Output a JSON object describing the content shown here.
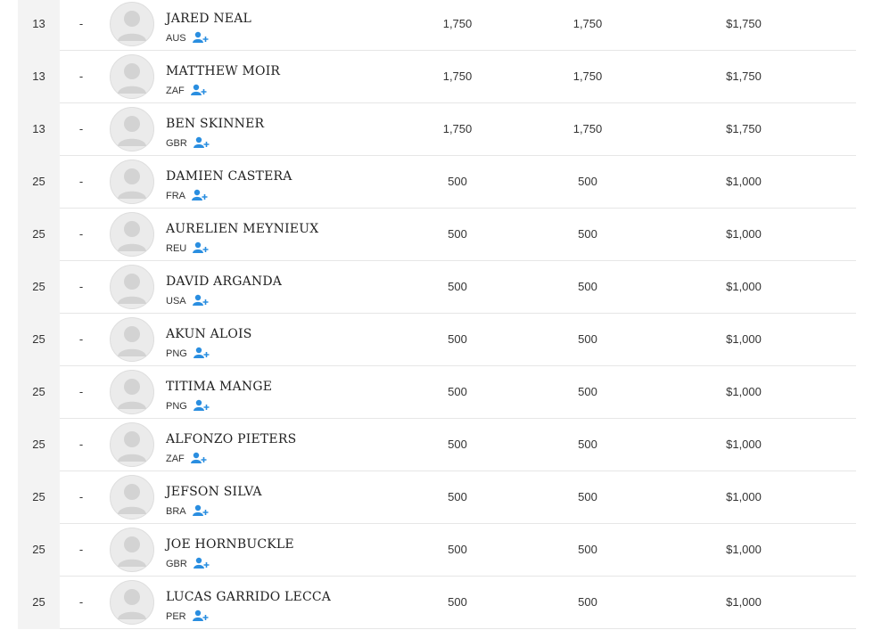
{
  "table": {
    "rows": [
      {
        "rank": "13",
        "change": "-",
        "name": "JARED NEAL",
        "country": "AUS",
        "points": "1,750",
        "points2": "1,750",
        "prize": "$1,750"
      },
      {
        "rank": "13",
        "change": "-",
        "name": "MATTHEW MOIR",
        "country": "ZAF",
        "points": "1,750",
        "points2": "1,750",
        "prize": "$1,750"
      },
      {
        "rank": "13",
        "change": "-",
        "name": "BEN SKINNER",
        "country": "GBR",
        "points": "1,750",
        "points2": "1,750",
        "prize": "$1,750"
      },
      {
        "rank": "25",
        "change": "-",
        "name": "DAMIEN CASTERA",
        "country": "FRA",
        "points": "500",
        "points2": "500",
        "prize": "$1,000"
      },
      {
        "rank": "25",
        "change": "-",
        "name": "AURELIEN MEYNIEUX",
        "country": "REU",
        "points": "500",
        "points2": "500",
        "prize": "$1,000"
      },
      {
        "rank": "25",
        "change": "-",
        "name": "DAVID ARGANDA",
        "country": "USA",
        "points": "500",
        "points2": "500",
        "prize": "$1,000"
      },
      {
        "rank": "25",
        "change": "-",
        "name": "AKUN ALOIS",
        "country": "PNG",
        "points": "500",
        "points2": "500",
        "prize": "$1,000"
      },
      {
        "rank": "25",
        "change": "-",
        "name": "TITIMA MANGE",
        "country": "PNG",
        "points": "500",
        "points2": "500",
        "prize": "$1,000"
      },
      {
        "rank": "25",
        "change": "-",
        "name": "ALFONZO PIETERS",
        "country": "ZAF",
        "points": "500",
        "points2": "500",
        "prize": "$1,000"
      },
      {
        "rank": "25",
        "change": "-",
        "name": "JEFSON SILVA",
        "country": "BRA",
        "points": "500",
        "points2": "500",
        "prize": "$1,000"
      },
      {
        "rank": "25",
        "change": "-",
        "name": "JOE HORNBUCKLE",
        "country": "GBR",
        "points": "500",
        "points2": "500",
        "prize": "$1,000"
      },
      {
        "rank": "25",
        "change": "-",
        "name": "LUCAS GARRIDO LECCA",
        "country": "PER",
        "points": "500",
        "points2": "500",
        "prize": "$1,000"
      }
    ]
  }
}
